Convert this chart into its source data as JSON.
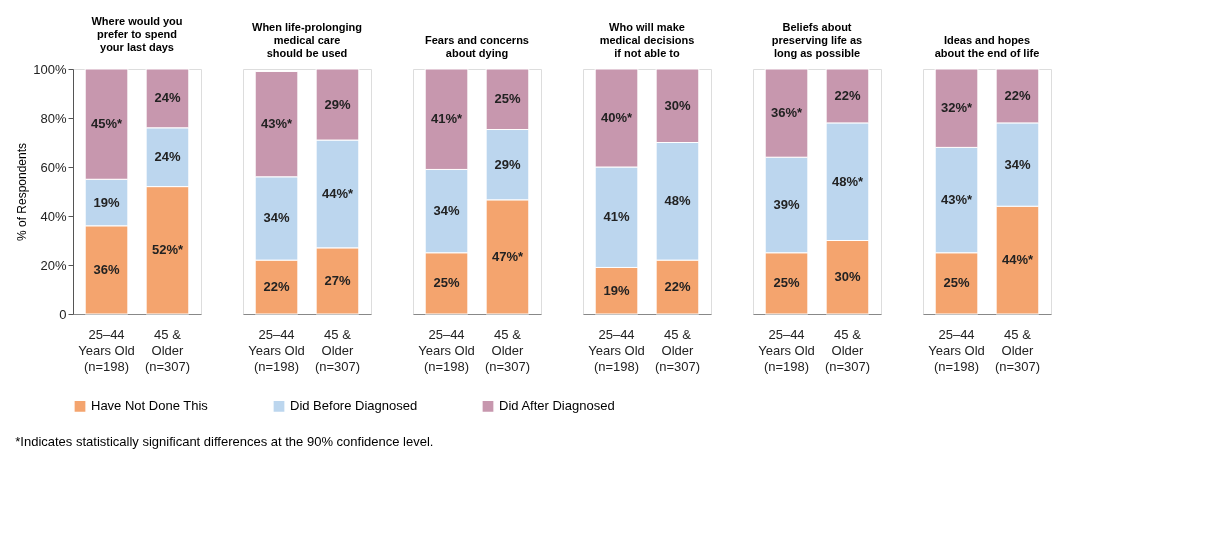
{
  "chart_data": [
    {
      "type": "bar",
      "stacked": true,
      "title": "Where would you\nprefer to spend\nyour last days",
      "ylabel": "% of Respondents",
      "categories": [
        "25–44\nYears Old\n(n=198)",
        "45 &\nOlder\n(n=307)"
      ],
      "ylim": [
        0,
        100
      ],
      "yticks": [
        0,
        {
          "value": 20,
          "label": "20%"
        },
        {
          "value": 40,
          "label": "40%"
        },
        {
          "value": 60,
          "label": "60%"
        },
        {
          "value": 80,
          "label": "80%"
        },
        {
          "value": 100,
          "label": "100%"
        }
      ],
      "legend": "bottom",
      "annotations": [
        "*Indicates statistically significant differences at the 90% confidence level."
      ],
      "series": [
        {
          "name": "Have Not Done This",
          "color": "#f4a46e",
          "values": [
            36,
            52
          ],
          "value_labels": [
            "36%",
            "52%*"
          ]
        },
        {
          "name": "Did Before Diagnosed",
          "color": "#bcd6ee",
          "values": [
            19,
            24
          ],
          "value_labels": [
            "19%",
            "24%"
          ]
        },
        {
          "name": "Did After Diagnosed",
          "color": "#c797ae",
          "values": [
            45,
            24
          ],
          "value_labels": [
            "45%*",
            "24%"
          ]
        }
      ]
    },
    {
      "type": "bar",
      "stacked": true,
      "title": "When life-prolonging\nmedical care\nshould be used",
      "categories": [
        "25–44\nYears Old\n(n=198)",
        "45 &\nOlder\n(n=307)"
      ],
      "ylim": [
        0,
        100
      ],
      "yticks": [
        0,
        20,
        40,
        60,
        80,
        100
      ],
      "tick_labels": "x",
      "series": [
        {
          "name": "Have Not Done This",
          "color": "#f4a46e",
          "values": [
            22,
            27
          ],
          "value_labels": [
            "22%",
            "27%"
          ]
        },
        {
          "name": "Did Before Diagnosed",
          "color": "#bcd6ee",
          "values": [
            34,
            44
          ],
          "value_labels": [
            "34%",
            "44%*"
          ]
        },
        {
          "name": "Did After Diagnosed",
          "color": "#c797ae",
          "values": [
            43,
            29
          ],
          "value_labels": [
            "43%*",
            "29%"
          ]
        }
      ]
    },
    {
      "type": "bar",
      "stacked": true,
      "title": "Fears and concerns\nabout dying",
      "categories": [
        "25–44\nYears Old\n(n=198)",
        "45 &\nOlder\n(n=307)"
      ],
      "ylim": [
        0,
        100
      ],
      "yticks": [
        0,
        20,
        40,
        60,
        80,
        100
      ],
      "tick_labels": "x",
      "series": [
        {
          "name": "Have Not Done This",
          "color": "#f4a46e",
          "values": [
            25,
            46.6
          ],
          "value_labels": [
            "25%",
            "47%*"
          ]
        },
        {
          "name": "Did Before Diagnosed",
          "color": "#bcd6ee",
          "values": [
            34,
            28.7
          ],
          "value_labels": [
            "34%",
            "29%"
          ]
        },
        {
          "name": "Did After Diagnosed",
          "color": "#c797ae",
          "values": [
            41,
            24.7
          ],
          "value_labels": [
            "41%*",
            "25%"
          ]
        }
      ]
    },
    {
      "type": "bar",
      "stacked": true,
      "title": "Who will make\nmedical decisions\nif not able to",
      "categories": [
        "25–44\nYears Old\n(n=198)",
        "45 &\nOlder\n(n=307)"
      ],
      "ylim": [
        0,
        100
      ],
      "yticks": [
        0,
        20,
        40,
        60,
        80,
        100
      ],
      "tick_labels": "x",
      "series": [
        {
          "name": "Have Not Done This",
          "color": "#f4a46e",
          "values": [
            19,
            22
          ],
          "value_labels": [
            "19%",
            "22%"
          ]
        },
        {
          "name": "Did Before Diagnosed",
          "color": "#bcd6ee",
          "values": [
            41,
            48
          ],
          "value_labels": [
            "41%",
            "48%"
          ]
        },
        {
          "name": "Did After Diagnosed",
          "color": "#c797ae",
          "values": [
            40,
            30
          ],
          "value_labels": [
            "40%*",
            "30%"
          ]
        }
      ]
    },
    {
      "type": "bar",
      "stacked": true,
      "title": "Beliefs about\npreserving life as\nlong as possible",
      "categories": [
        "25–44\nYears Old\n(n=198)",
        "45 &\nOlder\n(n=307)"
      ],
      "ylim": [
        0,
        100
      ],
      "yticks": [
        0,
        20,
        40,
        60,
        80,
        100
      ],
      "tick_labels": "x",
      "series": [
        {
          "name": "Have Not Done This",
          "color": "#f4a46e",
          "values": [
            25,
            30
          ],
          "value_labels": [
            "25%",
            "30%"
          ]
        },
        {
          "name": "Did Before Diagnosed",
          "color": "#bcd6ee",
          "values": [
            39,
            48
          ],
          "value_labels": [
            "39%",
            "48%*"
          ]
        },
        {
          "name": "Did After Diagnosed",
          "color": "#c797ae",
          "values": [
            36,
            22
          ],
          "value_labels": [
            "36%*",
            "22%"
          ]
        }
      ]
    },
    {
      "type": "bar",
      "stacked": true,
      "title": "Ideas and hopes\nabout the end of life",
      "categories": [
        "25–44\nYears Old\n(n=198)",
        "45 &\nOlder\n(n=307)"
      ],
      "ylim": [
        0,
        100
      ],
      "yticks": [
        0,
        20,
        40,
        60,
        80,
        100
      ],
      "tick_labels": "x",
      "series": [
        {
          "name": "Have Not Done This",
          "color": "#f4a46e",
          "values": [
            25,
            44
          ],
          "value_labels": [
            "25%",
            "44%*"
          ]
        },
        {
          "name": "Did Before Diagnosed",
          "color": "#bcd6ee",
          "values": [
            43,
            34
          ],
          "value_labels": [
            "43%*",
            "34%"
          ]
        },
        {
          "name": "Did After Diagnosed",
          "color": "#c797ae",
          "values": [
            32,
            22
          ],
          "value_labels": [
            "32%*",
            "22%"
          ]
        }
      ]
    }
  ]
}
